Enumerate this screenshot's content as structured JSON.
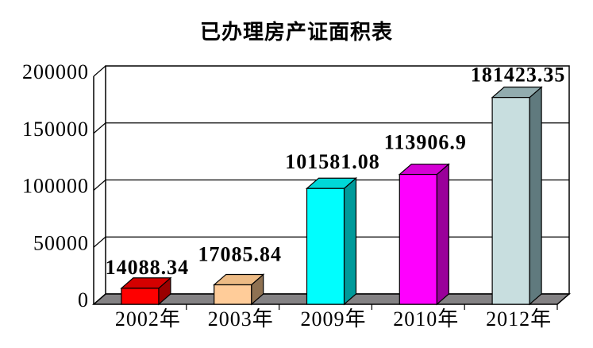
{
  "chart_data": {
    "type": "bar",
    "style": "3d-column",
    "title": "已办理房产证面积表",
    "categories": [
      "2002年",
      "2003年",
      "2009年",
      "2010年",
      "2012年"
    ],
    "values": [
      14088.34,
      17085.84,
      101581.08,
      113906.9,
      181423.35
    ],
    "value_labels": [
      "14088.34",
      "17085.84",
      "101581.08",
      "113906.9",
      "181423.35"
    ],
    "xlabel": "",
    "ylabel": "",
    "ylim": [
      0,
      200000
    ],
    "y_ticks": [
      0,
      50000,
      100000,
      150000,
      200000
    ],
    "y_tick_labels": [
      "0",
      "50000",
      "100000",
      "150000",
      "200000"
    ],
    "grid": true,
    "legend": false,
    "bar_colors": [
      {
        "front": "#FE0000",
        "top": "#D40000",
        "side": "#9A0000"
      },
      {
        "front": "#FFCC99",
        "top": "#EDBB85",
        "side": "#8E7152"
      },
      {
        "front": "#00FEFE",
        "top": "#00D8D8",
        "side": "#009A9A"
      },
      {
        "front": "#FE00FE",
        "top": "#D400D4",
        "side": "#9A009A"
      },
      {
        "front": "#C8DEDF",
        "top": "#92ACAF",
        "side": "#607A7E"
      }
    ],
    "floor_color": "#848284",
    "wall_color": "#FFFFFF",
    "line_color": "#000000",
    "text_color": "#000000"
  }
}
